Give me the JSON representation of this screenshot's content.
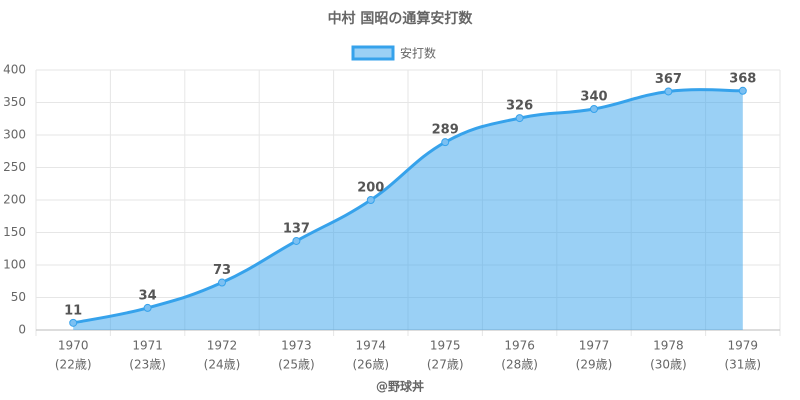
{
  "chart_data": {
    "type": "area",
    "title": "中村 国昭の通算安打数",
    "caption": "@野球丼",
    "categories": [
      [
        "1970",
        "(22歳)"
      ],
      [
        "1971",
        "(23歳)"
      ],
      [
        "1972",
        "(24歳)"
      ],
      [
        "1973",
        "(25歳)"
      ],
      [
        "1974",
        "(26歳)"
      ],
      [
        "1975",
        "(27歳)"
      ],
      [
        "1976",
        "(28歳)"
      ],
      [
        "1977",
        "(29歳)"
      ],
      [
        "1978",
        "(30歳)"
      ],
      [
        "1979",
        "(31歳)"
      ]
    ],
    "series": [
      {
        "name": "安打数",
        "color": "#36a2eb",
        "values": [
          11,
          34,
          73,
          137,
          200,
          289,
          326,
          340,
          367,
          368
        ]
      }
    ],
    "ylim": [
      0,
      400
    ],
    "yticks": [
      0,
      50,
      100,
      150,
      200,
      250,
      300,
      350,
      400
    ],
    "grid": true,
    "legend": "top"
  }
}
